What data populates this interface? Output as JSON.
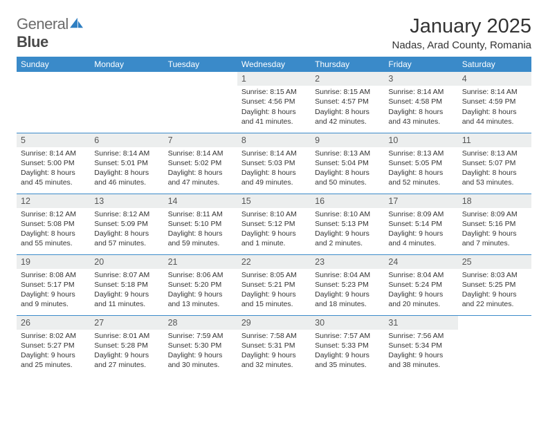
{
  "logo": {
    "text1": "General",
    "text2": "Blue"
  },
  "title": "January 2025",
  "location": "Nadas, Arad County, Romania",
  "header_bg": "#3a8ac9",
  "header_fg": "#ffffff",
  "daynum_bg": "#eceeee",
  "rule_color": "#3a8ac9",
  "day_names": [
    "Sunday",
    "Monday",
    "Tuesday",
    "Wednesday",
    "Thursday",
    "Friday",
    "Saturday"
  ],
  "weeks": [
    [
      {
        "n": "",
        "sr": "",
        "ss": "",
        "dl": ""
      },
      {
        "n": "",
        "sr": "",
        "ss": "",
        "dl": ""
      },
      {
        "n": "",
        "sr": "",
        "ss": "",
        "dl": ""
      },
      {
        "n": "1",
        "sr": "8:15 AM",
        "ss": "4:56 PM",
        "dl": "8 hours and 41 minutes."
      },
      {
        "n": "2",
        "sr": "8:15 AM",
        "ss": "4:57 PM",
        "dl": "8 hours and 42 minutes."
      },
      {
        "n": "3",
        "sr": "8:14 AM",
        "ss": "4:58 PM",
        "dl": "8 hours and 43 minutes."
      },
      {
        "n": "4",
        "sr": "8:14 AM",
        "ss": "4:59 PM",
        "dl": "8 hours and 44 minutes."
      }
    ],
    [
      {
        "n": "5",
        "sr": "8:14 AM",
        "ss": "5:00 PM",
        "dl": "8 hours and 45 minutes."
      },
      {
        "n": "6",
        "sr": "8:14 AM",
        "ss": "5:01 PM",
        "dl": "8 hours and 46 minutes."
      },
      {
        "n": "7",
        "sr": "8:14 AM",
        "ss": "5:02 PM",
        "dl": "8 hours and 47 minutes."
      },
      {
        "n": "8",
        "sr": "8:14 AM",
        "ss": "5:03 PM",
        "dl": "8 hours and 49 minutes."
      },
      {
        "n": "9",
        "sr": "8:13 AM",
        "ss": "5:04 PM",
        "dl": "8 hours and 50 minutes."
      },
      {
        "n": "10",
        "sr": "8:13 AM",
        "ss": "5:05 PM",
        "dl": "8 hours and 52 minutes."
      },
      {
        "n": "11",
        "sr": "8:13 AM",
        "ss": "5:07 PM",
        "dl": "8 hours and 53 minutes."
      }
    ],
    [
      {
        "n": "12",
        "sr": "8:12 AM",
        "ss": "5:08 PM",
        "dl": "8 hours and 55 minutes."
      },
      {
        "n": "13",
        "sr": "8:12 AM",
        "ss": "5:09 PM",
        "dl": "8 hours and 57 minutes."
      },
      {
        "n": "14",
        "sr": "8:11 AM",
        "ss": "5:10 PM",
        "dl": "8 hours and 59 minutes."
      },
      {
        "n": "15",
        "sr": "8:10 AM",
        "ss": "5:12 PM",
        "dl": "9 hours and 1 minute."
      },
      {
        "n": "16",
        "sr": "8:10 AM",
        "ss": "5:13 PM",
        "dl": "9 hours and 2 minutes."
      },
      {
        "n": "17",
        "sr": "8:09 AM",
        "ss": "5:14 PM",
        "dl": "9 hours and 4 minutes."
      },
      {
        "n": "18",
        "sr": "8:09 AM",
        "ss": "5:16 PM",
        "dl": "9 hours and 7 minutes."
      }
    ],
    [
      {
        "n": "19",
        "sr": "8:08 AM",
        "ss": "5:17 PM",
        "dl": "9 hours and 9 minutes."
      },
      {
        "n": "20",
        "sr": "8:07 AM",
        "ss": "5:18 PM",
        "dl": "9 hours and 11 minutes."
      },
      {
        "n": "21",
        "sr": "8:06 AM",
        "ss": "5:20 PM",
        "dl": "9 hours and 13 minutes."
      },
      {
        "n": "22",
        "sr": "8:05 AM",
        "ss": "5:21 PM",
        "dl": "9 hours and 15 minutes."
      },
      {
        "n": "23",
        "sr": "8:04 AM",
        "ss": "5:23 PM",
        "dl": "9 hours and 18 minutes."
      },
      {
        "n": "24",
        "sr": "8:04 AM",
        "ss": "5:24 PM",
        "dl": "9 hours and 20 minutes."
      },
      {
        "n": "25",
        "sr": "8:03 AM",
        "ss": "5:25 PM",
        "dl": "9 hours and 22 minutes."
      }
    ],
    [
      {
        "n": "26",
        "sr": "8:02 AM",
        "ss": "5:27 PM",
        "dl": "9 hours and 25 minutes."
      },
      {
        "n": "27",
        "sr": "8:01 AM",
        "ss": "5:28 PM",
        "dl": "9 hours and 27 minutes."
      },
      {
        "n": "28",
        "sr": "7:59 AM",
        "ss": "5:30 PM",
        "dl": "9 hours and 30 minutes."
      },
      {
        "n": "29",
        "sr": "7:58 AM",
        "ss": "5:31 PM",
        "dl": "9 hours and 32 minutes."
      },
      {
        "n": "30",
        "sr": "7:57 AM",
        "ss": "5:33 PM",
        "dl": "9 hours and 35 minutes."
      },
      {
        "n": "31",
        "sr": "7:56 AM",
        "ss": "5:34 PM",
        "dl": "9 hours and 38 minutes."
      },
      {
        "n": "",
        "sr": "",
        "ss": "",
        "dl": ""
      }
    ]
  ],
  "labels": {
    "sunrise": "Sunrise:",
    "sunset": "Sunset:",
    "daylight": "Daylight:"
  }
}
